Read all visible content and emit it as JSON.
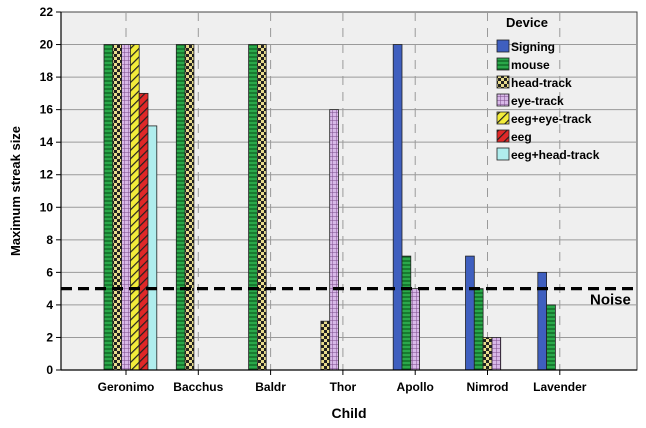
{
  "chart_data": {
    "type": "bar",
    "xlabel": "Child",
    "ylabel": "Maximum streak size",
    "ylim": [
      0,
      22
    ],
    "yticks": [
      0,
      2,
      4,
      6,
      8,
      10,
      12,
      14,
      16,
      18,
      20,
      22
    ],
    "grid": true,
    "legend_title": "Device",
    "legend_position": "top-right",
    "categories": [
      "Geronimo",
      "Bacchus",
      "Baldr",
      "Thor",
      "Apollo",
      "Nimrod",
      "Lavender"
    ],
    "series": [
      {
        "name": "Signing",
        "color": "#3f5fbf",
        "pattern": "solid",
        "values": [
          null,
          null,
          null,
          null,
          20,
          7,
          6
        ]
      },
      {
        "name": "mouse",
        "color": "#2aa84a",
        "pattern": "hlines",
        "values": [
          20,
          20,
          20,
          null,
          7,
          5,
          4
        ]
      },
      {
        "name": "head-track",
        "color": "#e8dc8c",
        "pattern": "checker",
        "values": [
          20,
          20,
          20,
          3,
          null,
          2,
          null
        ]
      },
      {
        "name": "eye-track",
        "color": "#c8a8d8",
        "pattern": "grid",
        "values": [
          20,
          null,
          null,
          16,
          5,
          2,
          null
        ]
      },
      {
        "name": "eeg+eye-track",
        "color": "#f2ec3a",
        "pattern": "diagonal",
        "values": [
          20,
          null,
          null,
          null,
          null,
          null,
          null
        ]
      },
      {
        "name": "eeg",
        "color": "#e02828",
        "pattern": "diagonal",
        "values": [
          17,
          null,
          null,
          null,
          null,
          null,
          null
        ]
      },
      {
        "name": "eeg+head-track",
        "color": "#b0eeee",
        "pattern": "solid",
        "values": [
          15,
          null,
          null,
          null,
          null,
          null,
          null
        ]
      }
    ],
    "reference_line": {
      "value": 5,
      "label": "Noise",
      "style": "dashed"
    }
  }
}
